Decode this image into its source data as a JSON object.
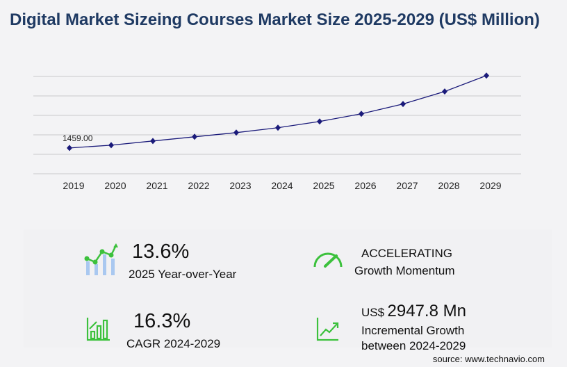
{
  "title": "Digital Market Sizeing Courses Market Size 2025-2029 (US$ Million)",
  "chart_data": {
    "type": "line",
    "title": "Digital Market Sizeing Courses Market Size 2025-2029 (US$ Million)",
    "categories": [
      "2019",
      "2020",
      "2021",
      "2022",
      "2023",
      "2024",
      "2025",
      "2026",
      "2027",
      "2028",
      "2029"
    ],
    "values": [
      1459,
      1617,
      1853,
      2090,
      2326,
      2602,
      2957,
      3390,
      3943,
      4652,
      5550
    ],
    "data_labels": {
      "0": "1459.00"
    },
    "ylim": [
      0,
      5500
    ],
    "gridlines": [
      0,
      1100,
      2200,
      3300,
      4400,
      5500
    ],
    "grid": true,
    "line_color": "#1a1a7a"
  },
  "stats": [
    {
      "value": "13.6%",
      "label": "2025 Year-over-Year",
      "icon": "bar-line-growth-icon"
    },
    {
      "value": "ACCELERATING",
      "label": "Growth Momentum",
      "icon": "speedometer-icon"
    },
    {
      "value": "16.3%",
      "label": "CAGR 2024-2029",
      "icon": "bar-chart-icon"
    },
    {
      "prefix": "US$",
      "value": "2947.8 Mn",
      "label1": "Incremental Growth",
      "label2": "between 2024-2029",
      "icon": "line-growth-icon"
    }
  ],
  "source": "source: www.technavio.com",
  "accent": "#3cc13c"
}
